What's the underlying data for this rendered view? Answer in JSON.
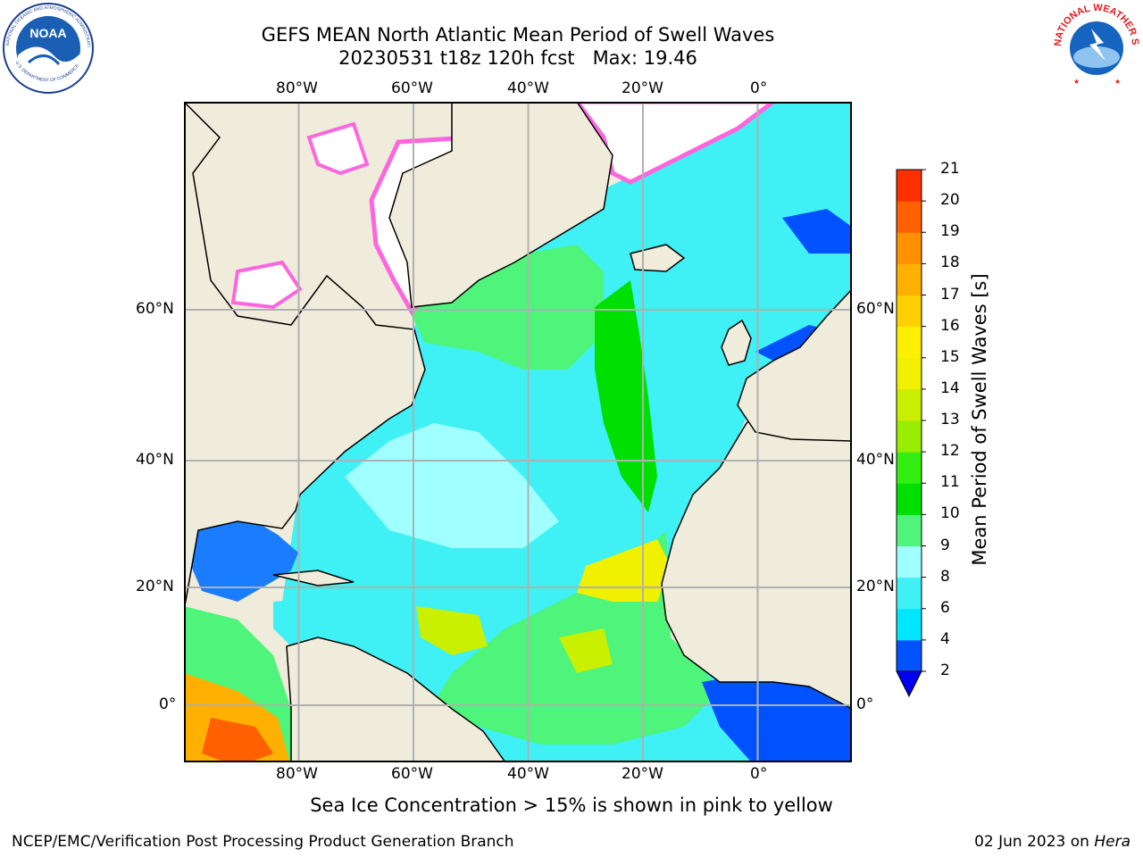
{
  "title": {
    "line1": "GEFS MEAN North Atlantic Mean Period of Swell Waves",
    "line2": "20230531 t18z 120h fcst   Max: 19.46"
  },
  "logos": {
    "noaa": {
      "name": "noaa-logo",
      "center_text": "NOAA",
      "ring_text": "NATIONAL OCEANIC AND ATMOSPHERIC ADMINISTRATION",
      "bottom_text": "U.S. DEPARTMENT OF COMMERCE",
      "colors": {
        "sky": "#1a5fb4",
        "wave": "#ffffff",
        "ring": "#ffffff",
        "border": "#1a3f8f"
      }
    },
    "nws": {
      "name": "nws-logo",
      "ring_text": "NATIONAL WEATHER SERVICE",
      "colors": {
        "ring": "#e41a1c",
        "center": "#1565c0",
        "cloud": "#90c4f0",
        "bolt": "#ffffff"
      }
    }
  },
  "map": {
    "projection": "equirectangular",
    "lon_range": [
      -100,
      15
    ],
    "lat_range": [
      -8,
      80
    ],
    "lon_ticks": [
      "80°W",
      "60°W",
      "40°W",
      "20°W",
      "0°"
    ],
    "lat_ticks_left": [
      "60°N",
      "40°N",
      "20°N",
      "0°"
    ],
    "lat_ticks_right": [
      "60°N",
      "40°N",
      "20°N",
      "0°"
    ],
    "colors": {
      "land": "#efecdc",
      "ocean_base": "#3ff0f4",
      "grid": "#b0b0b0",
      "sea_ice": "#ffffff",
      "ice_edge": "#ff66dd",
      "coast": "#000000"
    }
  },
  "colorbar": {
    "label": "Mean Period of Swell Waves [s]",
    "tick_labels": [
      "2",
      "4",
      "6",
      "8",
      "9",
      "10",
      "11",
      "12",
      "13",
      "14",
      "15",
      "16",
      "17",
      "18",
      "19",
      "20",
      "21"
    ],
    "colors": [
      "#0052ff",
      "#00e6ff",
      "#3ff0f4",
      "#a0ffff",
      "#4ef57a",
      "#00e000",
      "#33ee11",
      "#99ee00",
      "#c8f000",
      "#f0f000",
      "#fff000",
      "#ffd000",
      "#ffb000",
      "#ff9000",
      "#ff6000",
      "#ff3000"
    ],
    "extend_below_color": "#0000ee"
  },
  "note": "Sea Ice Concentration > 15% is shown in pink to yellow",
  "footer": {
    "left": "NCEP/EMC/Verification Post Processing Product Generation Branch",
    "right_date": "02 Jun 2023 on ",
    "right_host": "Hera"
  }
}
